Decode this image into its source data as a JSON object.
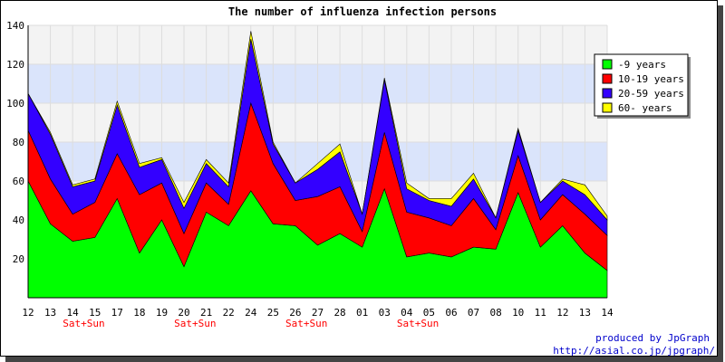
{
  "chart_data": {
    "type": "area",
    "stacked": true,
    "title": "The number of influenza infection persons",
    "xlabel": "",
    "ylabel": "",
    "ylim": [
      0,
      140
    ],
    "yticks": [
      20,
      40,
      60,
      80,
      100,
      120,
      140
    ],
    "categories": [
      "12",
      "13",
      "14",
      "15",
      "17",
      "18",
      "19",
      "20",
      "21",
      "22",
      "24",
      "25",
      "26",
      "27",
      "28",
      "01",
      "03",
      "04",
      "05",
      "06",
      "07",
      "08",
      "10",
      "11",
      "12",
      "13",
      "14"
    ],
    "weekend_label": "Sat+Sun",
    "weekend_indices": [
      2,
      7,
      12,
      17
    ],
    "series": [
      {
        "name": "-9 years",
        "color": "#00ff00",
        "values": [
          60,
          38,
          29,
          31,
          51,
          23,
          40,
          16,
          44,
          37,
          55,
          38,
          37,
          27,
          33,
          26,
          56,
          21,
          23,
          21,
          26,
          25,
          54,
          26,
          37,
          23,
          14
        ]
      },
      {
        "name": "10-19 years",
        "color": "#ff0000",
        "values": [
          26,
          23,
          14,
          18,
          23,
          30,
          19,
          17,
          15,
          11,
          45,
          31,
          13,
          25,
          24,
          8,
          29,
          23,
          18,
          16,
          25,
          10,
          19,
          14,
          16,
          20,
          18
        ]
      },
      {
        "name": "20-59 years",
        "color": "#3300ff",
        "values": [
          19,
          23,
          14,
          11,
          25,
          14,
          12,
          13,
          10,
          9,
          33,
          10,
          9,
          14,
          18,
          9,
          27,
          12,
          9,
          10,
          10,
          6,
          13,
          9,
          7,
          10,
          8
        ]
      },
      {
        "name": "60- years",
        "color": "#ffff00",
        "values": [
          0,
          1,
          1,
          1,
          2,
          2,
          1,
          3,
          2,
          2,
          4,
          1,
          0,
          3,
          4,
          0,
          1,
          3,
          1,
          4,
          3,
          0,
          1,
          0,
          1,
          5,
          2
        ]
      }
    ],
    "grid": true,
    "legend_position": "top-right"
  },
  "credits": {
    "line1": "produced by JpGraph",
    "line2": "http://asial.co.jp/jpgraph/"
  }
}
